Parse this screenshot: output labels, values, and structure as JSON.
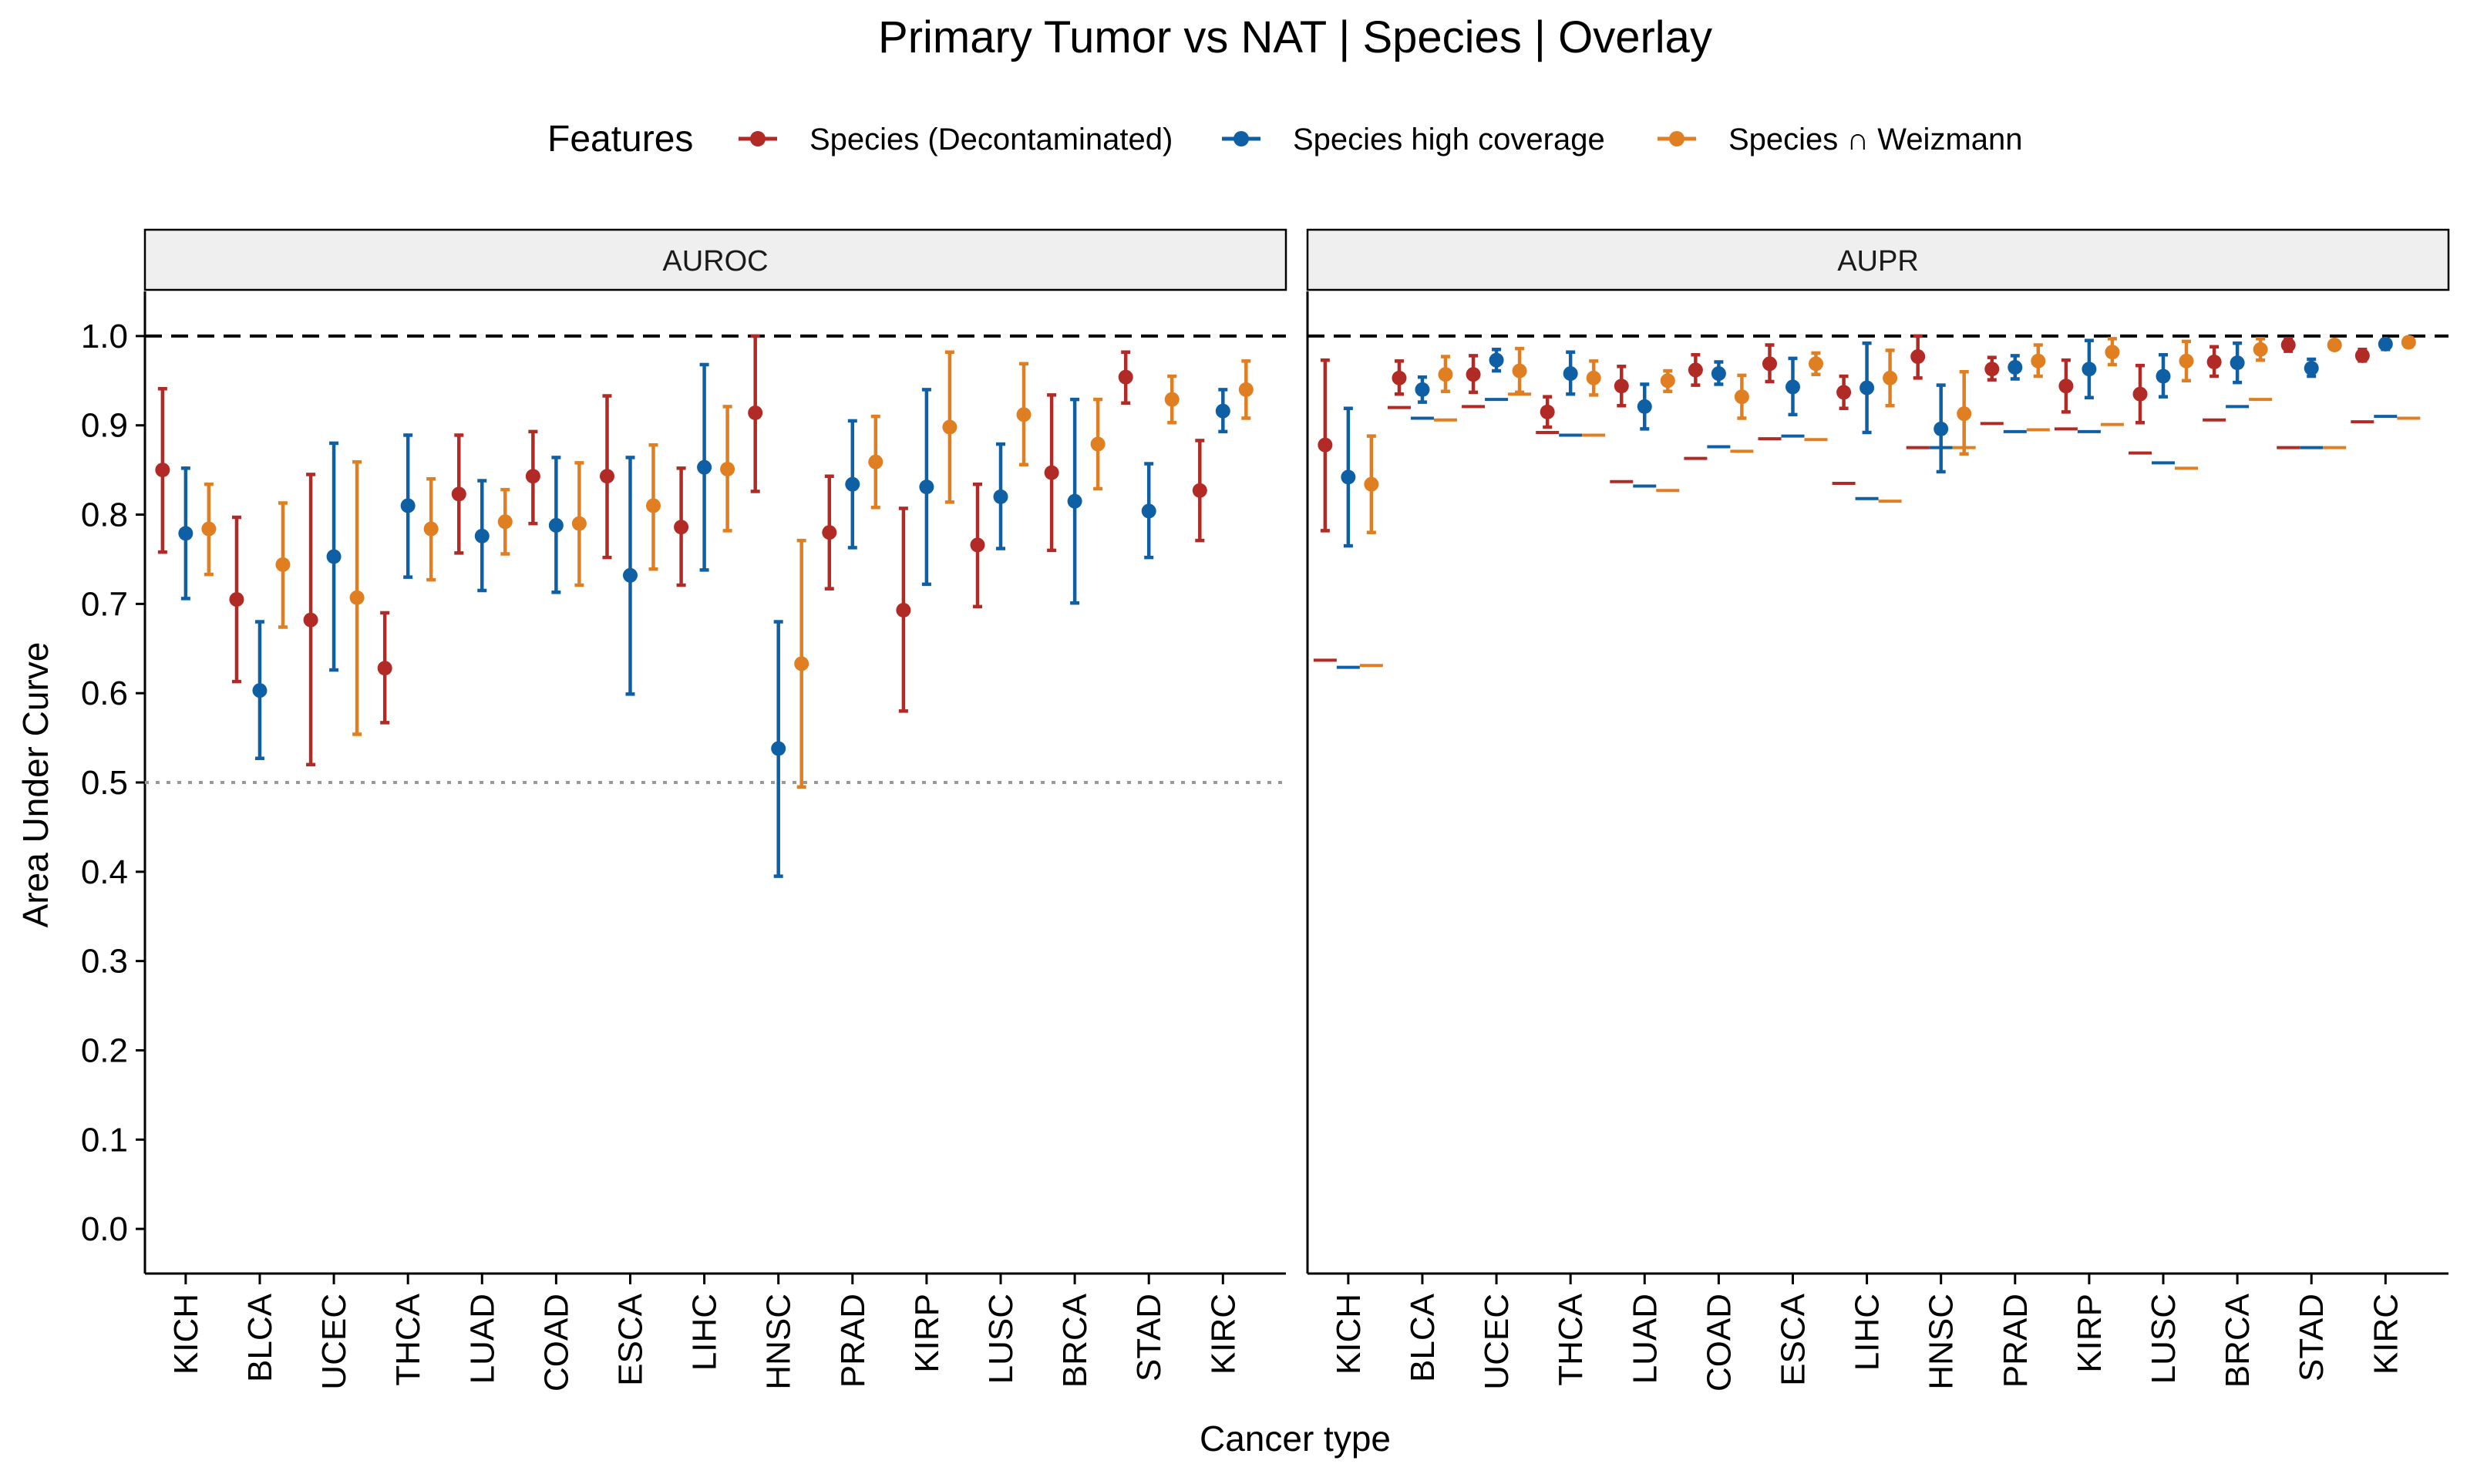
{
  "chart_data": {
    "type": "errorbar",
    "title": "Primary Tumor vs NAT | Species | Overlay",
    "xlabel": "Cancer type",
    "ylabel": "Area Under Curve",
    "ylim": [
      -0.05,
      1.05
    ],
    "yticks": [
      "0.0",
      "0.1",
      "0.2",
      "0.3",
      "0.4",
      "0.5",
      "0.6",
      "0.7",
      "0.8",
      "0.9",
      "1.0"
    ],
    "legend": {
      "title": "Features",
      "placement": "top",
      "items": [
        {
          "name": "Species (Decontaminated)",
          "color": "#b22a25"
        },
        {
          "name": "Species high coverage",
          "color": "#0f5fa5"
        },
        {
          "name": "Species ∩ Weizmann",
          "color": "#e07f22"
        }
      ]
    },
    "categories": [
      "KICH",
      "BLCA",
      "UCEC",
      "THCA",
      "LUAD",
      "COAD",
      "ESCA",
      "LIHC",
      "HNSC",
      "PRAD",
      "KIRP",
      "LUSC",
      "BRCA",
      "STAD",
      "KIRC"
    ],
    "panels": [
      {
        "name": "AUROC",
        "reference_lines": [
          {
            "y": 1.0,
            "style": "dashed"
          },
          {
            "y": 0.5,
            "style": "dotted"
          }
        ],
        "series": [
          {
            "name": "Species (Decontaminated)",
            "values": [
              0.85,
              0.705,
              0.682,
              0.628,
              0.823,
              0.843,
              0.843,
              0.786,
              0.914,
              0.78,
              0.693,
              0.766,
              0.847,
              0.954,
              0.827
            ],
            "lower": [
              0.758,
              0.613,
              0.52,
              0.567,
              0.757,
              0.79,
              0.752,
              0.721,
              0.826,
              0.717,
              0.58,
              0.697,
              0.76,
              0.925,
              0.771
            ],
            "upper": [
              0.941,
              0.797,
              0.845,
              0.69,
              0.889,
              0.893,
              0.933,
              0.852,
              1.0,
              0.843,
              0.807,
              0.834,
              0.934,
              0.982,
              0.883
            ]
          },
          {
            "name": "Species high coverage",
            "values": [
              0.779,
              0.603,
              0.753,
              0.81,
              0.776,
              0.788,
              0.732,
              0.853,
              0.538,
              0.834,
              0.831,
              0.82,
              0.815,
              0.804,
              0.916
            ],
            "lower": [
              0.706,
              0.527,
              0.626,
              0.73,
              0.715,
              0.713,
              0.599,
              0.738,
              0.395,
              0.763,
              0.722,
              0.762,
              0.701,
              0.752,
              0.893
            ],
            "upper": [
              0.852,
              0.68,
              0.88,
              0.889,
              0.838,
              0.864,
              0.864,
              0.968,
              0.68,
              0.905,
              0.94,
              0.879,
              0.929,
              0.857,
              0.94
            ]
          },
          {
            "name": "Species ∩ Weizmann",
            "values": [
              0.784,
              0.744,
              0.707,
              0.784,
              0.792,
              0.79,
              0.81,
              0.851,
              0.633,
              0.859,
              0.898,
              0.912,
              0.879,
              0.929,
              0.94
            ],
            "lower": [
              0.733,
              0.674,
              0.554,
              0.727,
              0.756,
              0.721,
              0.739,
              0.782,
              0.495,
              0.808,
              0.814,
              0.856,
              0.829,
              0.903,
              0.908
            ],
            "upper": [
              0.834,
              0.813,
              0.859,
              0.84,
              0.828,
              0.858,
              0.878,
              0.921,
              0.771,
              0.91,
              0.982,
              0.969,
              0.929,
              0.955,
              0.972
            ]
          }
        ]
      },
      {
        "name": "AUPR",
        "reference_lines": [
          {
            "y": 1.0,
            "style": "dashed"
          }
        ],
        "series": [
          {
            "name": "Species (Decontaminated)",
            "values": [
              0.878,
              0.953,
              0.957,
              0.915,
              0.944,
              0.962,
              0.969,
              0.937,
              0.977,
              0.963,
              0.944,
              0.935,
              0.971,
              0.99,
              0.978
            ],
            "lower": [
              0.782,
              0.935,
              0.937,
              0.898,
              0.922,
              0.945,
              0.949,
              0.919,
              0.953,
              0.951,
              0.915,
              0.903,
              0.955,
              0.983,
              0.972
            ],
            "upper": [
              0.973,
              0.972,
              0.978,
              0.932,
              0.966,
              0.979,
              0.99,
              0.955,
              1.0,
              0.976,
              0.973,
              0.967,
              0.988,
              0.997,
              0.985
            ],
            "baseline": [
              0.637,
              0.92,
              0.921,
              0.892,
              0.837,
              0.863,
              0.885,
              0.835,
              0.875,
              0.902,
              0.896,
              0.869,
              0.906,
              0.875,
              0.904
            ]
          },
          {
            "name": "Species high coverage",
            "values": [
              0.842,
              0.94,
              0.973,
              0.958,
              0.921,
              0.958,
              0.943,
              0.942,
              0.896,
              0.965,
              0.963,
              0.955,
              0.97,
              0.964,
              0.991
            ],
            "lower": [
              0.765,
              0.926,
              0.961,
              0.935,
              0.896,
              0.946,
              0.912,
              0.892,
              0.848,
              0.952,
              0.931,
              0.932,
              0.948,
              0.955,
              0.985
            ],
            "upper": [
              0.919,
              0.954,
              0.985,
              0.982,
              0.946,
              0.971,
              0.975,
              0.992,
              0.945,
              0.978,
              0.995,
              0.979,
              0.992,
              0.974,
              0.996
            ],
            "baseline": [
              0.629,
              0.908,
              0.929,
              0.889,
              0.832,
              0.876,
              0.888,
              0.818,
              0.875,
              0.893,
              0.893,
              0.858,
              0.921,
              0.875,
              0.91
            ]
          },
          {
            "name": "Species ∩ Weizmann",
            "values": [
              0.834,
              0.957,
              0.961,
              0.953,
              0.95,
              0.932,
              0.969,
              0.953,
              0.913,
              0.972,
              0.982,
              0.972,
              0.985,
              0.99,
              0.993
            ],
            "lower": [
              0.78,
              0.938,
              0.937,
              0.934,
              0.938,
              0.908,
              0.957,
              0.922,
              0.868,
              0.955,
              0.968,
              0.95,
              0.973,
              0.986,
              0.988
            ],
            "upper": [
              0.888,
              0.977,
              0.986,
              0.972,
              0.961,
              0.956,
              0.981,
              0.984,
              0.96,
              0.99,
              0.997,
              0.994,
              0.997,
              0.994,
              0.998
            ],
            "baseline": [
              0.631,
              0.906,
              0.935,
              0.889,
              0.827,
              0.871,
              0.884,
              0.815,
              0.875,
              0.895,
              0.901,
              0.852,
              0.929,
              0.875,
              0.908
            ]
          }
        ]
      }
    ]
  }
}
